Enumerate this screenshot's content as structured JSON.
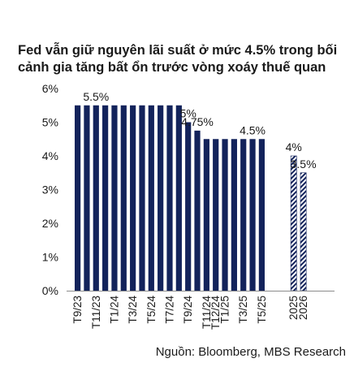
{
  "title_lines": [
    "Fed vẫn giữ nguyên lãi suất ở mức 4.5% trong bối",
    "cảnh gia tăng bất ổn trước vòng xoáy thuế quan"
  ],
  "source": "Nguồn: Bloomberg, MBS Research",
  "colors": {
    "bar": "#13235b",
    "forecast": "#13235b",
    "axis": "#8c8c8c"
  },
  "chart_data": {
    "type": "bar",
    "categories": [
      "T9/23",
      "T10/23",
      "T11/23",
      "T12/23",
      "T1/24",
      "T2/24",
      "T3/24",
      "T4/24",
      "T5/24",
      "T6/24",
      "T7/24",
      "T8/24",
      "T9/24",
      "T10/24",
      "T11/24",
      "T12/24",
      "T1/25",
      "T2/25",
      "T3/25",
      "T4/25",
      "T5/25",
      "2025",
      "2026"
    ],
    "tick_labels": [
      "T9/23",
      "",
      "T11/23",
      "",
      "T1/24",
      "",
      "T3/24",
      "",
      "T5/24",
      "",
      "T7/24",
      "",
      "T9/24",
      "",
      "T11/24",
      "T12/24",
      "T1/25",
      "",
      "T3/25",
      "",
      "T5/25",
      "2025",
      "2026"
    ],
    "values": [
      5.5,
      5.5,
      5.5,
      5.5,
      5.5,
      5.5,
      5.5,
      5.5,
      5.5,
      5.5,
      5.5,
      5.5,
      5,
      4.75,
      4.5,
      4.5,
      4.5,
      4.5,
      4.5,
      4.5,
      4.5,
      4,
      3.5
    ],
    "forecast": [
      false,
      false,
      false,
      false,
      false,
      false,
      false,
      false,
      false,
      false,
      false,
      false,
      false,
      false,
      false,
      false,
      false,
      false,
      false,
      false,
      false,
      true,
      true
    ],
    "data_labels": [
      {
        "index": 2,
        "text": "5.5%"
      },
      {
        "index": 12,
        "text": "5%"
      },
      {
        "index": 13,
        "text": "4.75%"
      },
      {
        "index": 19,
        "text": "4.5%"
      },
      {
        "index": 21,
        "text": "4%"
      },
      {
        "index": 22,
        "text": "3.5%"
      }
    ],
    "ylim": [
      0,
      6
    ],
    "yticks": [
      "0%",
      "1%",
      "2%",
      "3%",
      "4%",
      "5%",
      "6%"
    ],
    "grid": false,
    "xlabel": "",
    "ylabel": ""
  }
}
